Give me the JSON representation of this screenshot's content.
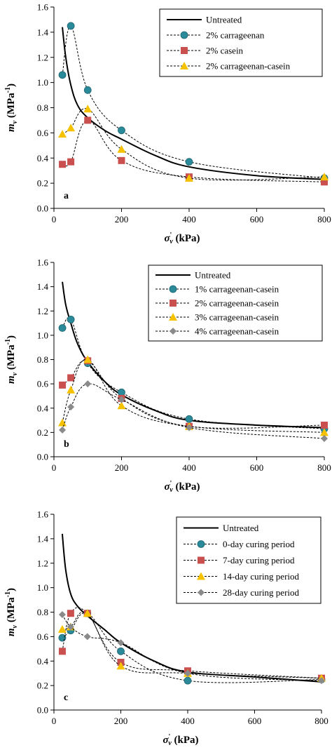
{
  "chart_data": [
    {
      "type": "line",
      "panel": "a",
      "xlabel": "σ'v (kPa)",
      "ylabel": "mv (MPa-1)",
      "xlim": [
        0,
        800
      ],
      "ylim": [
        0,
        1.6
      ],
      "xticks": [
        "0",
        "200",
        "400",
        "600",
        "800"
      ],
      "yticks": [
        "0.0",
        "0.2",
        "0.4",
        "0.6",
        "0.8",
        "1.0",
        "1.2",
        "1.4",
        "1.6"
      ],
      "grid": false,
      "legend_position": "top-right",
      "series": [
        {
          "name": "Untreated",
          "style": "solid",
          "marker": "none",
          "color": "#000000",
          "x": [
            25,
            35,
            50,
            70,
            100,
            150,
            200,
            300,
            400,
            600,
            800
          ],
          "y": [
            1.44,
            1.2,
            0.98,
            0.82,
            0.72,
            0.62,
            0.55,
            0.42,
            0.33,
            0.26,
            0.23
          ]
        },
        {
          "name": "2% carrageenan",
          "style": "dashed",
          "marker": "circle",
          "color": "#2a8a9a",
          "x": [
            25,
            50,
            100,
            200,
            400,
            800
          ],
          "y": [
            1.06,
            1.45,
            0.94,
            0.62,
            0.37,
            0.24
          ]
        },
        {
          "name": "2% casein",
          "style": "dashed",
          "marker": "square",
          "color": "#c9504f",
          "x": [
            25,
            50,
            100,
            200,
            400,
            800
          ],
          "y": [
            0.35,
            0.37,
            0.7,
            0.38,
            0.25,
            0.21
          ]
        },
        {
          "name": "2% carrageenan-casein",
          "style": "dashed",
          "marker": "triangle",
          "color": "#f6c200",
          "x": [
            25,
            50,
            100,
            200,
            400,
            800
          ],
          "y": [
            0.59,
            0.64,
            0.79,
            0.47,
            0.24,
            0.25
          ]
        }
      ]
    },
    {
      "type": "line",
      "panel": "b",
      "xlabel": "σ'v (kPa)",
      "ylabel": "mv (MPa-1)",
      "xlim": [
        0,
        800
      ],
      "ylim": [
        0,
        1.6
      ],
      "xticks": [
        "0",
        "200",
        "400",
        "600",
        "800"
      ],
      "yticks": [
        "0.0",
        "0.2",
        "0.4",
        "0.6",
        "0.8",
        "1.0",
        "1.2",
        "1.4",
        "1.6"
      ],
      "grid": false,
      "legend_position": "top-right",
      "series": [
        {
          "name": "Untreated",
          "style": "solid",
          "marker": "none",
          "color": "#000000",
          "x": [
            25,
            35,
            50,
            70,
            100,
            150,
            200,
            300,
            400,
            600,
            800
          ],
          "y": [
            1.44,
            1.25,
            1.1,
            0.93,
            0.78,
            0.62,
            0.51,
            0.38,
            0.3,
            0.26,
            0.24
          ]
        },
        {
          "name": "1% carrageenan-casein",
          "style": "dashed",
          "marker": "circle",
          "color": "#2a8a9a",
          "x": [
            25,
            50,
            100,
            200,
            400,
            800
          ],
          "y": [
            1.06,
            1.13,
            0.77,
            0.53,
            0.31,
            0.23
          ]
        },
        {
          "name": "2% carrageenan-casein",
          "style": "dashed",
          "marker": "square",
          "color": "#c9504f",
          "x": [
            25,
            50,
            100,
            200,
            400,
            800
          ],
          "y": [
            0.59,
            0.65,
            0.79,
            0.48,
            0.25,
            0.26
          ]
        },
        {
          "name": "3% carrageenan-casein",
          "style": "dashed",
          "marker": "triangle",
          "color": "#f6c200",
          "x": [
            25,
            50,
            100,
            200,
            400,
            800
          ],
          "y": [
            0.28,
            0.55,
            0.8,
            0.42,
            0.25,
            0.2
          ]
        },
        {
          "name": "4% carrageenan-casein",
          "style": "dashed",
          "marker": "diamond",
          "color": "#8a8a8a",
          "x": [
            25,
            50,
            100,
            200,
            400,
            800
          ],
          "y": [
            0.22,
            0.41,
            0.6,
            0.47,
            0.24,
            0.15
          ]
        }
      ]
    },
    {
      "type": "line",
      "panel": "c",
      "xlabel": "σ'v (kPa)",
      "ylabel": "mv (MPa-1)",
      "xlim": [
        0,
        800
      ],
      "ylim": [
        0,
        1.6
      ],
      "xticks": [
        "0",
        "200",
        "400",
        "600",
        "800"
      ],
      "yticks": [
        "0.0",
        "0.2",
        "0.4",
        "0.6",
        "0.8",
        "1.0",
        "1.2",
        "1.4",
        "1.6"
      ],
      "grid": false,
      "legend_position": "top-right",
      "series": [
        {
          "name": "Untreated",
          "style": "solid",
          "marker": "none",
          "color": "#000000",
          "x": [
            25,
            35,
            50,
            70,
            100,
            150,
            200,
            300,
            400,
            600,
            800
          ],
          "y": [
            1.44,
            1.15,
            0.95,
            0.85,
            0.77,
            0.66,
            0.55,
            0.4,
            0.31,
            0.27,
            0.23
          ]
        },
        {
          "name": "0-day curing period",
          "style": "dashed",
          "marker": "circle",
          "color": "#2a8a9a",
          "x": [
            25,
            50,
            100,
            200,
            400,
            800
          ],
          "y": [
            0.59,
            0.65,
            0.79,
            0.48,
            0.24,
            0.25
          ]
        },
        {
          "name": "7-day curing period",
          "style": "dashed",
          "marker": "square",
          "color": "#c9504f",
          "x": [
            25,
            50,
            100,
            200,
            400,
            800
          ],
          "y": [
            0.48,
            0.79,
            0.79,
            0.39,
            0.32,
            0.26
          ]
        },
        {
          "name": "14-day curing period",
          "style": "dashed",
          "marker": "triangle",
          "color": "#f6c200",
          "x": [
            25,
            50,
            100,
            200,
            400,
            800
          ],
          "y": [
            0.66,
            0.68,
            0.79,
            0.36,
            0.3,
            0.26
          ]
        },
        {
          "name": "28-day curing period",
          "style": "dashed",
          "marker": "diamond",
          "color": "#8a8a8a",
          "x": [
            25,
            50,
            100,
            200,
            400,
            800
          ],
          "y": [
            0.78,
            0.68,
            0.6,
            0.55,
            0.3,
            0.24
          ]
        }
      ]
    }
  ]
}
